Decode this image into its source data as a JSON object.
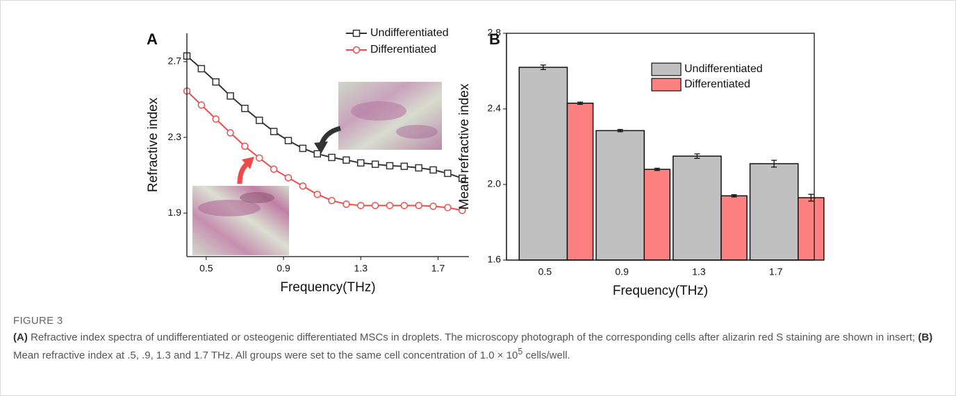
{
  "chart_data": [
    {
      "type": "line",
      "panel": "A",
      "x_label": "Frequency(THz)",
      "y_label": "Refractive index",
      "x": [
        0.4,
        0.475,
        0.55,
        0.625,
        0.7,
        0.775,
        0.85,
        0.925,
        1.0,
        1.075,
        1.15,
        1.225,
        1.3,
        1.375,
        1.45,
        1.525,
        1.6,
        1.675,
        1.75,
        1.825
      ],
      "series": [
        {
          "name": "Undifferentiated",
          "color": "#333333",
          "marker": "square",
          "values": [
            2.73,
            2.663,
            2.593,
            2.519,
            2.453,
            2.39,
            2.331,
            2.283,
            2.242,
            2.213,
            2.194,
            2.18,
            2.165,
            2.158,
            2.15,
            2.147,
            2.139,
            2.128,
            2.11,
            2.084
          ]
        },
        {
          "name": "Differentiated",
          "color": "#f04b4b",
          "marker": "circle",
          "values": [
            2.545,
            2.471,
            2.397,
            2.324,
            2.253,
            2.191,
            2.132,
            2.087,
            2.043,
            1.999,
            1.966,
            1.947,
            1.94,
            1.94,
            1.94,
            1.94,
            1.94,
            1.936,
            1.929,
            1.914
          ]
        }
      ],
      "xlim": [
        0.4,
        1.86
      ],
      "xticks": [
        0.5,
        0.9,
        1.3,
        1.7
      ],
      "ylim": [
        1.67,
        2.85
      ],
      "yticks": [
        1.9,
        2.3,
        2.7
      ]
    },
    {
      "type": "bar",
      "panel": "B",
      "x_label": "Frequency(THz)",
      "y_label": "Mean refractive index",
      "categories": [
        "0.5",
        "0.9",
        "1.3",
        "1.7"
      ],
      "series": [
        {
          "name": "Undifferentiated",
          "color": "#c0c0c0",
          "values": [
            2.62,
            2.285,
            2.15,
            2.11
          ],
          "errors": [
            0.012,
            0.006,
            0.012,
            0.018
          ]
        },
        {
          "name": "Differentiated",
          "color": "#ff8080",
          "values": [
            2.43,
            2.08,
            1.94,
            1.93
          ],
          "errors": [
            0.006,
            0.006,
            0.006,
            0.018
          ]
        }
      ],
      "ylim": [
        1.6,
        2.8
      ],
      "yticks": [
        1.6,
        {
          "value": 2,
          "label": "2.0"
        },
        2.4,
        2.8
      ]
    }
  ],
  "caption": {
    "label": "FIGURE 3",
    "part_a_tag": "(A)",
    "part_a_text": " Refractive index spectra of undifferentiated or osteogenic differentiated MSCs in droplets. The microscopy photograph of the corresponding cells after alizarin red S staining are shown in insert; ",
    "part_b_tag": "(B)",
    "part_b_text": " Mean refractive index at .5, .9, 1.3 and 1.7 THz. All groups were set to the same cell concentration of 1.0 × 10",
    "superscript": "5",
    "tail": " cells/well."
  }
}
